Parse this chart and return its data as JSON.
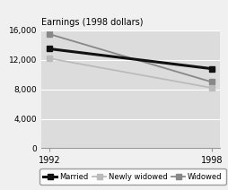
{
  "title": "Earnings (1998 dollars)",
  "x_values": [
    1992,
    1998
  ],
  "x_ticks": [
    1992,
    1998
  ],
  "ylim": [
    0,
    16000
  ],
  "yticks": [
    0,
    4000,
    8000,
    12000,
    16000
  ],
  "series": [
    {
      "label": "Married",
      "values": [
        13500,
        10800
      ],
      "color": "#111111",
      "marker": "s",
      "markersize": 5,
      "linewidth": 2.2,
      "zorder": 4
    },
    {
      "label": "Newly widowed",
      "values": [
        12200,
        8200
      ],
      "color": "#bbbbbb",
      "marker": "s",
      "markersize": 5,
      "linewidth": 1.3,
      "zorder": 3
    },
    {
      "label": "Widowed",
      "values": [
        15500,
        9000
      ],
      "color": "#888888",
      "marker": "s",
      "markersize": 5,
      "linewidth": 1.3,
      "zorder": 2
    }
  ],
  "background_color": "#dcdcdc",
  "legend_background": "#ffffff",
  "ytick_labels": [
    "0",
    "4,000",
    "8,000",
    "12,000",
    "16,000"
  ],
  "figsize": [
    2.55,
    2.12
  ],
  "dpi": 100
}
